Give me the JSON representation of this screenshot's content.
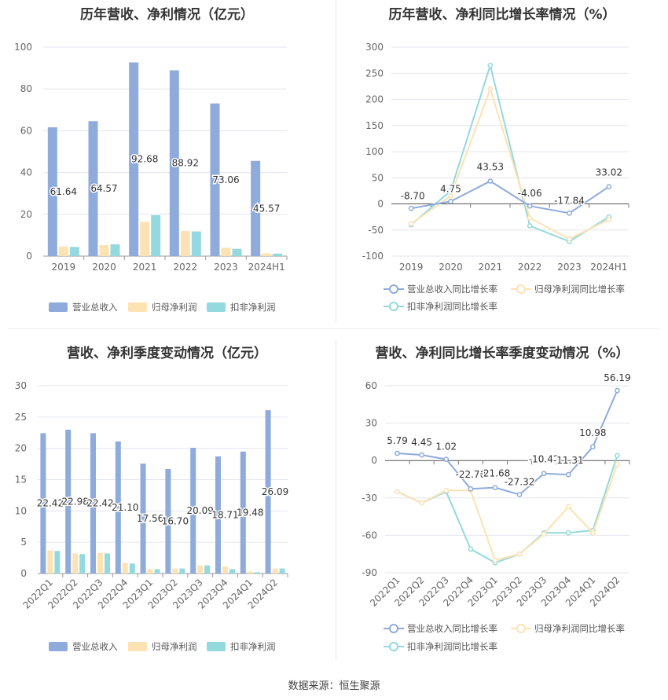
{
  "footer": "数据来源：恒生聚源",
  "colors": {
    "revenue": "#8eabdb",
    "parent_profit": "#fde2b3",
    "deducted_profit": "#94d9dd",
    "revenue_line": "#8eabdb",
    "parent_line": "#fde2b3",
    "deducted_line": "#94d9dd"
  },
  "chart_data": [
    {
      "id": "annual_amount",
      "type": "bar",
      "title": "历年营收、净利情况（亿元）",
      "categories": [
        "2019",
        "2020",
        "2021",
        "2022",
        "2023",
        "2024H1"
      ],
      "ylim": [
        0,
        100
      ],
      "yticks": [
        0,
        20,
        40,
        60,
        80,
        100
      ],
      "series": [
        {
          "name": "营业总收入",
          "values": [
            61.64,
            64.57,
            92.68,
            88.92,
            73.06,
            45.57
          ],
          "labels": [
            "61.64",
            "64.57",
            "92.68",
            "88.92",
            "73.06",
            "45.57"
          ]
        },
        {
          "name": "归母净利润",
          "values": [
            4.6,
            5.3,
            16.5,
            12.0,
            4.0,
            1.3
          ]
        },
        {
          "name": "扣非净利润",
          "values": [
            4.4,
            5.6,
            19.6,
            11.8,
            3.5,
            1.2
          ]
        }
      ],
      "legend": "bottom"
    },
    {
      "id": "annual_growth",
      "type": "line",
      "title": "历年营收、净利同比增长率情况（%）",
      "categories": [
        "2019",
        "2020",
        "2021",
        "2022",
        "2023",
        "2024H1"
      ],
      "ylim": [
        -100,
        300
      ],
      "yticks": [
        -100,
        -50,
        0,
        50,
        100,
        150,
        200,
        250,
        300
      ],
      "series": [
        {
          "name": "营业总收入同比增长率",
          "values": [
            -8.7,
            4.75,
            43.53,
            -4.06,
            -17.84,
            33.02
          ],
          "labels": [
            "-8.70",
            "4.75",
            "43.53",
            "-4.06",
            "-17.84",
            "33.02"
          ]
        },
        {
          "name": "归母净利润同比增长率",
          "values": [
            -38,
            15,
            220,
            -27,
            -67,
            -30
          ]
        },
        {
          "name": "扣非净利润同比增长率",
          "values": [
            -40,
            25,
            265,
            -42,
            -72,
            -25
          ]
        }
      ],
      "legend": "bottom"
    },
    {
      "id": "quarterly_amount",
      "type": "bar",
      "title": "营收、净利季度变动情况（亿元）",
      "categories": [
        "2022Q1",
        "2022Q2",
        "2022Q3",
        "2022Q4",
        "2023Q1",
        "2023Q2",
        "2023Q3",
        "2023Q4",
        "2024Q1",
        "2024Q2"
      ],
      "ylim": [
        0,
        30
      ],
      "yticks": [
        0,
        5,
        10,
        15,
        20,
        25,
        30
      ],
      "series": [
        {
          "name": "营业总收入",
          "values": [
            22.42,
            22.98,
            22.42,
            21.1,
            17.56,
            16.7,
            20.09,
            18.71,
            19.48,
            26.09
          ],
          "labels": [
            "22.42",
            "22.98",
            "22.42",
            "21.10",
            "17.56",
            "16.70",
            "20.09",
            "18.71",
            "19.48",
            "26.09"
          ]
        },
        {
          "name": "归母净利润",
          "values": [
            3.7,
            3.2,
            3.3,
            1.7,
            0.7,
            0.8,
            1.3,
            1.1,
            0.3,
            0.8
          ]
        },
        {
          "name": "扣非净利润",
          "values": [
            3.6,
            3.1,
            3.2,
            1.6,
            0.7,
            0.8,
            1.3,
            0.7,
            0.2,
            0.8
          ]
        }
      ],
      "legend": "bottom"
    },
    {
      "id": "quarterly_growth",
      "type": "line",
      "title": "营收、净利同比增长率季度变动情况（%）",
      "categories": [
        "2022Q1",
        "2022Q2",
        "2022Q3",
        "2022Q4",
        "2023Q1",
        "2023Q2",
        "2023Q3",
        "2023Q4",
        "2024Q1",
        "2024Q2"
      ],
      "ylim": [
        -90,
        60
      ],
      "yticks": [
        -90,
        -60,
        -30,
        0,
        30,
        60
      ],
      "series": [
        {
          "name": "营业总收入同比增长率",
          "values": [
            5.79,
            4.45,
            1.02,
            -22.7,
            -21.68,
            -27.32,
            -10.42,
            -11.31,
            10.98,
            56.19
          ],
          "labels": [
            "5.79",
            "4.45",
            "1.02",
            "-22.70",
            "-21.68",
            "-27.32",
            "-10.42",
            "-11.31",
            "10.98",
            "56.19"
          ]
        },
        {
          "name": "归母净利润同比增长率",
          "values": [
            -25,
            -34,
            -24,
            -24,
            -80,
            -75,
            -59,
            -37,
            -58,
            -3
          ]
        },
        {
          "name": "扣非净利润同比增长率",
          "values": [
            -25,
            -34,
            -25,
            -71,
            -82,
            -75,
            -58,
            -58,
            -56,
            4
          ]
        }
      ],
      "legend": "bottom"
    }
  ]
}
